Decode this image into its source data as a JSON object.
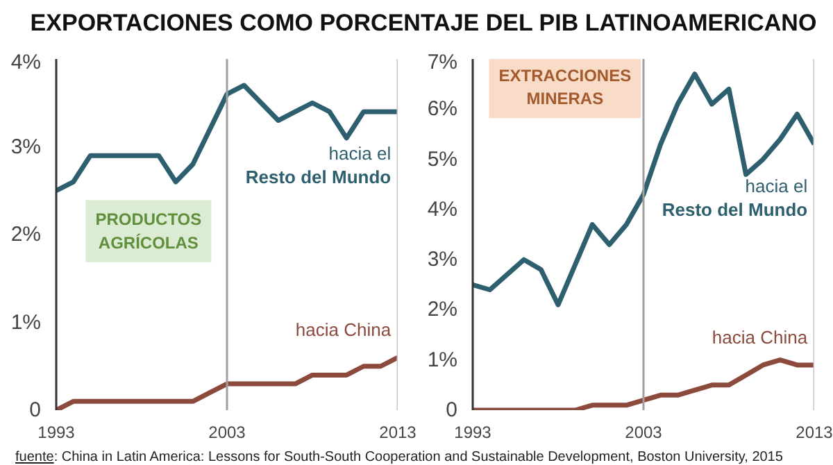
{
  "chart_data": [
    {
      "type": "line",
      "title": "EXPORTACIONES COMO PORCENTAJE DEL PIB LATINOAMERICANO",
      "annotations": [
        "PRODUCTOS\nAGRÍCOLAS"
      ],
      "x": [
        1993,
        1994,
        1995,
        1996,
        1997,
        1998,
        1999,
        2000,
        2001,
        2002,
        2003,
        2004,
        2005,
        2006,
        2007,
        2008,
        2009,
        2010,
        2011,
        2012,
        2013
      ],
      "series": [
        {
          "name": "hacia el\nResto del Mundo",
          "color": "#2e5f6e",
          "values": [
            2.5,
            2.6,
            2.9,
            2.9,
            2.9,
            2.9,
            2.9,
            2.6,
            2.8,
            3.2,
            3.6,
            3.7,
            3.5,
            3.3,
            3.4,
            3.5,
            3.4,
            3.1,
            3.4,
            3.4,
            3.4
          ]
        },
        {
          "name": "hacia China",
          "color": "#8b4a3c",
          "values": [
            0,
            0.1,
            0.1,
            0.1,
            0.1,
            0.1,
            0.1,
            0.1,
            0.1,
            0.2,
            0.3,
            0.3,
            0.3,
            0.3,
            0.3,
            0.4,
            0.4,
            0.4,
            0.5,
            0.5,
            0.6
          ]
        }
      ],
      "xlim": [
        1993,
        2013
      ],
      "xticks": [
        1993,
        2003,
        2013
      ],
      "ylim": [
        0,
        4
      ],
      "yticks": [
        {
          "value": 0,
          "label": "0"
        },
        {
          "value": 1,
          "label": "1%"
        },
        {
          "value": 2,
          "label": "2%"
        },
        {
          "value": 3,
          "label": "3%"
        },
        {
          "value": 4,
          "label": "4%"
        }
      ],
      "ref_lines": [
        {
          "axis": "x",
          "value": 2003,
          "color": "#a0a0a0"
        },
        {
          "axis": "x",
          "value": 2013,
          "color": "#c8c8c8"
        }
      ],
      "grid": false,
      "legend": false
    },
    {
      "type": "line",
      "annotations": [
        "EXTRACCIONES\nMINERAS",
        "fuente: China in Latin America: Lessons for South-South Cooperation and Sustainable Development, Boston University, 2015"
      ],
      "x": [
        1993,
        1994,
        1995,
        1996,
        1997,
        1998,
        1999,
        2000,
        2001,
        2002,
        2003,
        2004,
        2005,
        2006,
        2007,
        2008,
        2009,
        2010,
        2011,
        2012,
        2013
      ],
      "series": [
        {
          "name": "hacia el\nResto del Mundo",
          "color": "#2e5f6e",
          "values": [
            2.5,
            2.4,
            2.7,
            3.0,
            2.8,
            2.1,
            2.9,
            3.7,
            3.3,
            3.7,
            4.3,
            5.3,
            6.1,
            6.7,
            6.1,
            6.4,
            4.7,
            5.0,
            5.4,
            5.9,
            5.3
          ]
        },
        {
          "name": "hacia China",
          "color": "#8b4a3c",
          "values": [
            0,
            0,
            0,
            0,
            0,
            0,
            0,
            0.1,
            0.1,
            0.1,
            0.2,
            0.3,
            0.3,
            0.4,
            0.5,
            0.5,
            0.7,
            0.9,
            1.0,
            0.9,
            0.9
          ]
        }
      ],
      "xlim": [
        1993,
        2013
      ],
      "xticks": [
        1993,
        2003,
        2013
      ],
      "ylim": [
        0,
        7
      ],
      "yticks": [
        {
          "value": 0,
          "label": "0"
        },
        {
          "value": 1,
          "label": "1%"
        },
        {
          "value": 2,
          "label": "2%"
        },
        {
          "value": 3,
          "label": "3%"
        },
        {
          "value": 4,
          "label": "4%"
        },
        {
          "value": 5,
          "label": "5%"
        },
        {
          "value": 6,
          "label": "6%"
        },
        {
          "value": 7,
          "label": "7%"
        }
      ],
      "ref_lines": [
        {
          "axis": "x",
          "value": 2003,
          "color": "#a0a0a0"
        },
        {
          "axis": "x",
          "value": 2013,
          "color": "#c8c8c8"
        }
      ],
      "grid": false,
      "legend": false
    }
  ]
}
